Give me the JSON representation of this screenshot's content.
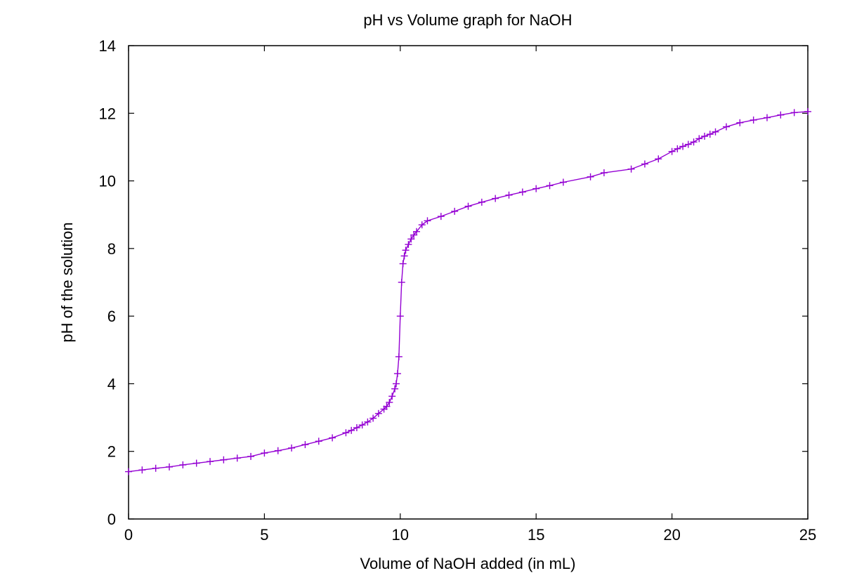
{
  "chart_data": {
    "type": "line",
    "title": "pH vs Volume graph for NaOH",
    "xlabel": "Volume of NaOH added (in mL)",
    "ylabel": "pH of the solution",
    "xlim": [
      0,
      25
    ],
    "ylim": [
      0,
      14
    ],
    "xticks": [
      0,
      5,
      10,
      15,
      20,
      25
    ],
    "yticks": [
      0,
      2,
      4,
      6,
      8,
      10,
      12,
      14
    ],
    "grid": false,
    "legend": "none",
    "series_color": "#9400d3",
    "marker": "plus",
    "series": [
      {
        "x": [
          0,
          0.5,
          1,
          1.5,
          2,
          2.5,
          3,
          3.5,
          4,
          4.5,
          5,
          5.5,
          6,
          6.5,
          7,
          7.5,
          8,
          8.2,
          8.4,
          8.6,
          8.8,
          9,
          9.2,
          9.4,
          9.5,
          9.6,
          9.7,
          9.8,
          9.85,
          9.9,
          9.95,
          10,
          10.05,
          10.1,
          10.15,
          10.2,
          10.3,
          10.4,
          10.5,
          10.6,
          10.8,
          11,
          11.5,
          12,
          12.5,
          13,
          13.5,
          14,
          14.5,
          15,
          15.5,
          16,
          17,
          17.5,
          18.5,
          19,
          19.5,
          20,
          20.2,
          20.4,
          20.6,
          20.8,
          21,
          21.2,
          21.4,
          21.6,
          22,
          22.5,
          23,
          23.5,
          24,
          24.5,
          25
        ],
        "y": [
          1.4,
          1.45,
          1.5,
          1.54,
          1.6,
          1.65,
          1.7,
          1.75,
          1.8,
          1.85,
          1.95,
          2.02,
          2.1,
          2.2,
          2.3,
          2.4,
          2.55,
          2.62,
          2.7,
          2.78,
          2.87,
          2.98,
          3.12,
          3.25,
          3.33,
          3.45,
          3.63,
          3.85,
          4.0,
          4.3,
          4.8,
          6.0,
          7.0,
          7.55,
          7.78,
          7.95,
          8.12,
          8.28,
          8.4,
          8.5,
          8.7,
          8.82,
          8.95,
          9.1,
          9.25,
          9.37,
          9.48,
          9.58,
          9.67,
          9.77,
          9.86,
          9.96,
          10.12,
          10.24,
          10.35,
          10.5,
          10.65,
          10.87,
          10.95,
          11.02,
          11.08,
          11.15,
          11.25,
          11.32,
          11.38,
          11.45,
          11.6,
          11.72,
          11.8,
          11.87,
          11.95,
          12.02,
          12.05
        ]
      }
    ]
  }
}
